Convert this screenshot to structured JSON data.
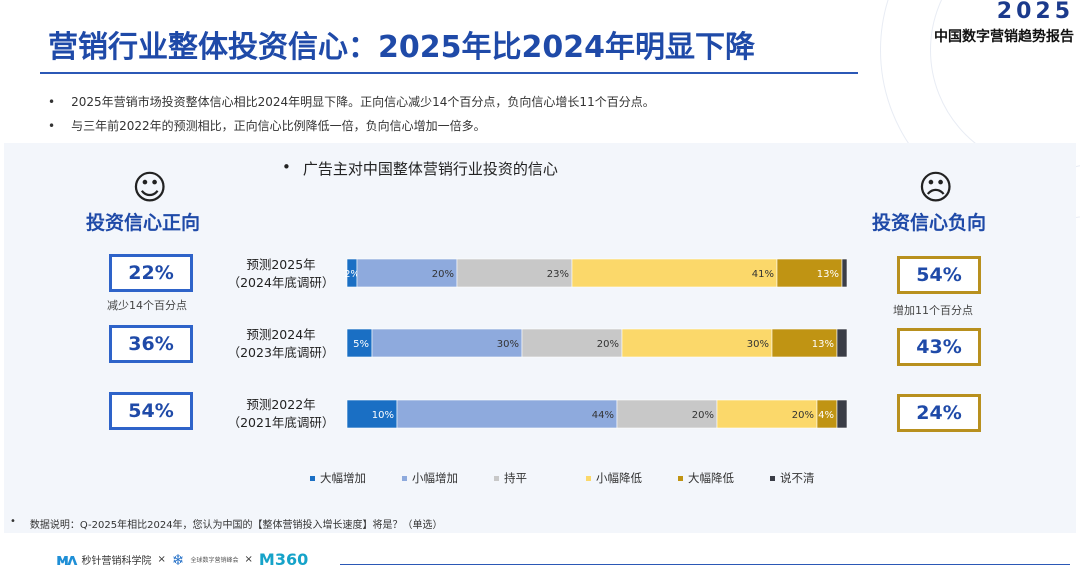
{
  "header": {
    "brand_year": "2025",
    "brand_report": "中国数字营销趋势报告",
    "title": "营销行业整体投资信心：2025年比2024年明显下降"
  },
  "bullets": [
    "2025年营销市场投资整体信心相比2024年明显下降。正向信心减少14个百分点，负向信心增长11个百分点。",
    "与三年前2022年的预测相比，正向信心比例降低一倍，负向信心增加一倍多。"
  ],
  "bullet_mark": "•",
  "chart_heading": "广告主对中国整体营销行业投资的信心",
  "left": {
    "face": "☺",
    "title": "投资信心正向",
    "values": [
      "22%",
      "36%",
      "54%"
    ],
    "note": "减少14个百分点"
  },
  "right": {
    "face": "☹",
    "title": "投资信心负向",
    "values": [
      "54%",
      "43%",
      "24%"
    ],
    "note": "增加11个百分点"
  },
  "chart_data": {
    "type": "bar",
    "orientation": "horizontal",
    "stacked": true,
    "categories": [
      [
        "预测2025年",
        "（2024年底调研）"
      ],
      [
        "预测2024年",
        "（2023年底调研）"
      ],
      [
        "预测2022年",
        "（2021年底调研）"
      ]
    ],
    "series": [
      {
        "name": "大幅增加",
        "color": "#1a6fc4",
        "values": [
          2,
          5,
          10
        ],
        "labels": [
          "2%",
          "5%",
          "10%"
        ]
      },
      {
        "name": "小幅增加",
        "color": "#8eaadd",
        "values": [
          20,
          30,
          44
        ],
        "labels": [
          "20%",
          "30%",
          "44%"
        ]
      },
      {
        "name": "持平",
        "color": "#c8c8c8",
        "values": [
          23,
          20,
          20
        ],
        "labels": [
          "23%",
          "20%",
          "20%"
        ]
      },
      {
        "name": "小幅降低",
        "color": "#fbd86a",
        "values": [
          41,
          30,
          20
        ],
        "labels": [
          "41%",
          "30%",
          "20%"
        ]
      },
      {
        "name": "大幅降低",
        "color": "#c09413",
        "values": [
          13,
          13,
          4
        ],
        "labels": [
          "13%",
          "13%",
          "4%"
        ]
      },
      {
        "name": "说不清",
        "color": "#3a3d46",
        "values": [
          1,
          2,
          2
        ],
        "labels": [
          "",
          "",
          ""
        ]
      }
    ],
    "xlim": [
      0,
      100
    ],
    "legend": "bottom"
  },
  "footnote": {
    "mark": "•",
    "text": "数据说明：Q-2025年相比2024年，您认为中国的【整体营销投入增长速度】将是？（单选）"
  },
  "footer": {
    "logo1_text": "秒针营销科学院",
    "sep": "×",
    "logo2_text": "全球数字营销峰会",
    "logo3_text": "M360"
  }
}
